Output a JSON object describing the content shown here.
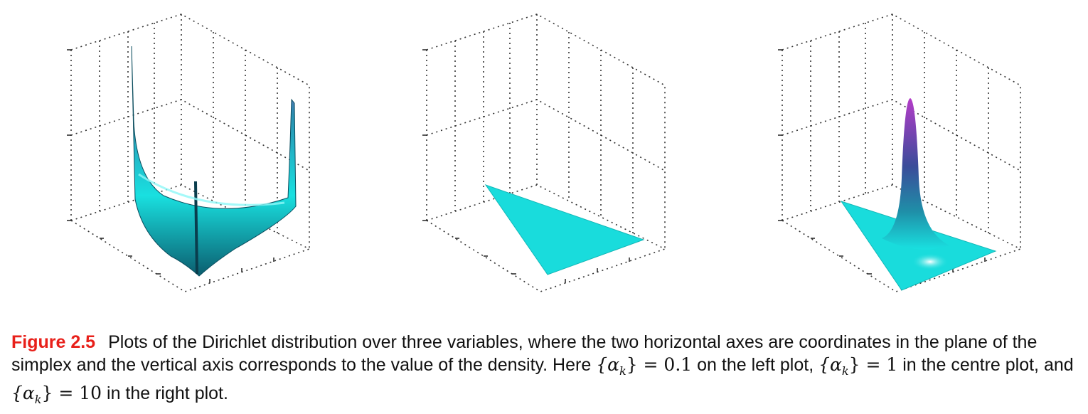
{
  "figure": {
    "label": "Figure 2.5",
    "caption": {
      "part1": "Plots of the Dirichlet distribution over three variables, where the two horizontal axes are coordinates in the plane of the simplex and the vertical axis corresponds to the value of the density. Here ",
      "math1": "{α",
      "math1_sub": "k",
      "math1_end": "} = 0.1",
      "part2": " on the left plot, ",
      "math2": "{α",
      "math2_sub": "k",
      "math2_end": "} = 1",
      "part3": " in the centre plot, and ",
      "math3": "{α",
      "math3_sub": "k",
      "math3_end": "} = 10",
      "part4": " in the right plot."
    }
  },
  "colors": {
    "surface_low": "#19e0e0",
    "surface_mid": "#2a6fa0",
    "surface_high": "#b43cc8",
    "grid": "#333333"
  },
  "chart_data": [
    {
      "type": "surface",
      "distribution": "Dirichlet",
      "alpha": 0.1,
      "shape": "density peaks at the three corners of the simplex"
    },
    {
      "type": "surface",
      "distribution": "Dirichlet",
      "alpha": 1,
      "shape": "flat (uniform) density over the simplex"
    },
    {
      "type": "surface",
      "distribution": "Dirichlet",
      "alpha": 10,
      "shape": "single peak at the centre of the simplex"
    }
  ]
}
